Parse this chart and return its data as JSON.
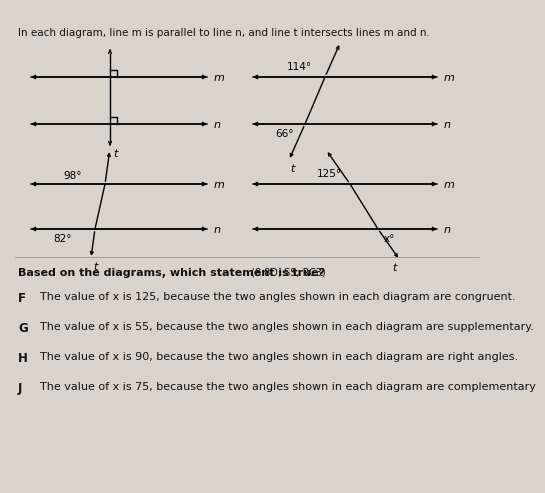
{
  "bg_color": "#d8d4cc",
  "title_text": "In each diagram, line m is parallel to line n, and line t intersects lines m and n.",
  "question_text": "Based on the diagrams, which statement is true?",
  "question_ref": " (8.8D, SS, RC3)",
  "options": [
    [
      "F",
      "The value of x is 125, because the two angles shown in each diagram are congruent."
    ],
    [
      "G",
      "The value of x is 55, because the two angles shown in each diagram are supplementary."
    ],
    [
      "H",
      "The value of x is 90, because the two angles shown in each diagram are right angles."
    ],
    [
      "J",
      "The value of x is 75, because the two angles shown in each diagram are complementary"
    ]
  ],
  "line_color": "#000000",
  "text_color": "#111111"
}
